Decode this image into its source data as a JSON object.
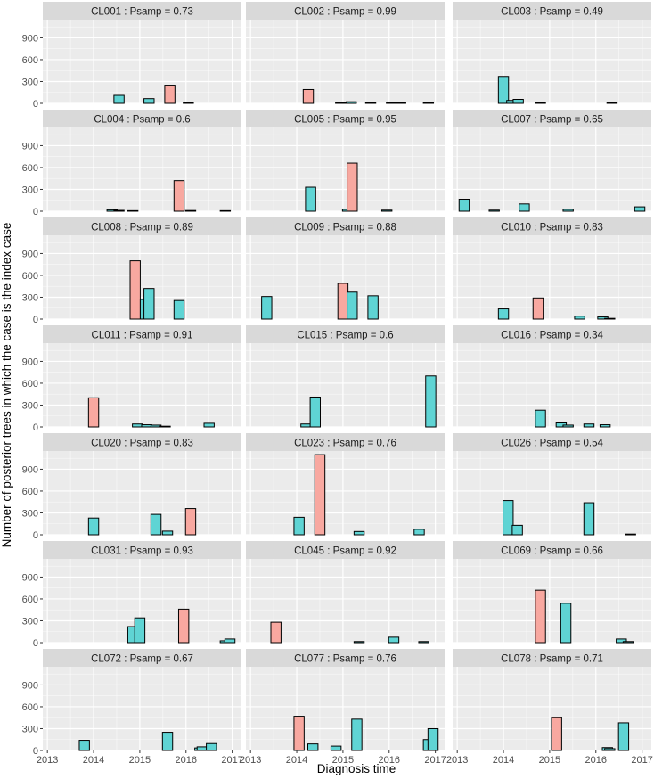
{
  "chart_data": {
    "type": "bar",
    "xlabel": "Diagnosis time",
    "ylabel": "Number of posterior trees in which the case is the index case",
    "xlim": [
      2012.9,
      2017.2
    ],
    "ylim": [
      0,
      1150
    ],
    "x_ticks": [
      "2013",
      "2014",
      "2015",
      "2016",
      "2017"
    ],
    "y_ticks": [
      "0",
      "300",
      "600",
      "900"
    ],
    "colors": {
      "pink": "#F8A8A0",
      "teal": "#5FD4D4",
      "panel": "#EBEBEB",
      "strip": "#D9D9D9",
      "grid": "#FFFFFF",
      "bar_border": "#000000"
    },
    "bar_width_years": 0.22,
    "panels": [
      {
        "label": "CL001 : Psamp = 0.73",
        "bars": [
          {
            "x": 2014.55,
            "y": 110,
            "fill": "teal"
          },
          {
            "x": 2015.2,
            "y": 65,
            "fill": "teal"
          },
          {
            "x": 2015.65,
            "y": 250,
            "fill": "pink"
          },
          {
            "x": 2016.05,
            "y": 10,
            "fill": "teal"
          }
        ]
      },
      {
        "label": "CL002 : Psamp = 0.99",
        "bars": [
          {
            "x": 2014.25,
            "y": 190,
            "fill": "pink"
          },
          {
            "x": 2014.95,
            "y": 8,
            "fill": "teal"
          },
          {
            "x": 2015.18,
            "y": 22,
            "fill": "teal"
          },
          {
            "x": 2015.6,
            "y": 12,
            "fill": "teal"
          },
          {
            "x": 2016.05,
            "y": 8,
            "fill": "teal"
          },
          {
            "x": 2016.25,
            "y": 10,
            "fill": "teal"
          },
          {
            "x": 2016.85,
            "y": 8,
            "fill": "teal"
          }
        ]
      },
      {
        "label": "CL003 : Psamp = 0.49",
        "bars": [
          {
            "x": 2014.0,
            "y": 370,
            "fill": "teal"
          },
          {
            "x": 2014.18,
            "y": 40,
            "fill": "teal"
          },
          {
            "x": 2014.32,
            "y": 55,
            "fill": "teal"
          },
          {
            "x": 2014.8,
            "y": 10,
            "fill": "teal"
          },
          {
            "x": 2016.35,
            "y": 12,
            "fill": "teal"
          }
        ]
      },
      {
        "label": "CL004 : Psamp = 0.6",
        "bars": [
          {
            "x": 2014.4,
            "y": 20,
            "fill": "teal"
          },
          {
            "x": 2014.55,
            "y": 12,
            "fill": "teal"
          },
          {
            "x": 2014.85,
            "y": 8,
            "fill": "teal"
          },
          {
            "x": 2015.85,
            "y": 420,
            "fill": "pink"
          },
          {
            "x": 2016.1,
            "y": 10,
            "fill": "teal"
          },
          {
            "x": 2016.85,
            "y": 8,
            "fill": "teal"
          }
        ]
      },
      {
        "label": "CL005 : Psamp = 0.95",
        "bars": [
          {
            "x": 2014.3,
            "y": 330,
            "fill": "teal"
          },
          {
            "x": 2015.1,
            "y": 25,
            "fill": "teal"
          },
          {
            "x": 2015.2,
            "y": 660,
            "fill": "pink"
          },
          {
            "x": 2015.95,
            "y": 15,
            "fill": "teal"
          }
        ]
      },
      {
        "label": "CL007 : Psamp = 0.65",
        "bars": [
          {
            "x": 2013.15,
            "y": 165,
            "fill": "teal"
          },
          {
            "x": 2013.8,
            "y": 15,
            "fill": "teal"
          },
          {
            "x": 2014.45,
            "y": 100,
            "fill": "teal"
          },
          {
            "x": 2015.4,
            "y": 25,
            "fill": "teal"
          },
          {
            "x": 2016.95,
            "y": 60,
            "fill": "teal"
          }
        ]
      },
      {
        "label": "CL008 : Psamp = 0.89",
        "bars": [
          {
            "x": 2014.9,
            "y": 800,
            "fill": "pink"
          },
          {
            "x": 2015.12,
            "y": 270,
            "fill": "teal"
          },
          {
            "x": 2015.2,
            "y": 420,
            "fill": "teal"
          },
          {
            "x": 2015.85,
            "y": 255,
            "fill": "teal"
          }
        ]
      },
      {
        "label": "CL009 : Psamp = 0.88",
        "bars": [
          {
            "x": 2013.35,
            "y": 310,
            "fill": "teal"
          },
          {
            "x": 2015.0,
            "y": 490,
            "fill": "pink"
          },
          {
            "x": 2015.2,
            "y": 370,
            "fill": "teal"
          },
          {
            "x": 2015.65,
            "y": 320,
            "fill": "teal"
          }
        ]
      },
      {
        "label": "CL010 : Psamp = 0.83",
        "bars": [
          {
            "x": 2014.0,
            "y": 140,
            "fill": "teal"
          },
          {
            "x": 2014.75,
            "y": 290,
            "fill": "pink"
          },
          {
            "x": 2015.65,
            "y": 40,
            "fill": "teal"
          },
          {
            "x": 2016.15,
            "y": 30,
            "fill": "teal"
          },
          {
            "x": 2016.3,
            "y": 10,
            "fill": "teal"
          }
        ]
      },
      {
        "label": "CL011 : Psamp = 0.91",
        "bars": [
          {
            "x": 2014.0,
            "y": 400,
            "fill": "pink"
          },
          {
            "x": 2014.95,
            "y": 40,
            "fill": "teal"
          },
          {
            "x": 2015.15,
            "y": 30,
            "fill": "teal"
          },
          {
            "x": 2015.35,
            "y": 25,
            "fill": "teal"
          },
          {
            "x": 2015.55,
            "y": 10,
            "fill": "teal"
          },
          {
            "x": 2016.5,
            "y": 50,
            "fill": "teal"
          }
        ]
      },
      {
        "label": "CL015 : Psamp = 0.6",
        "bars": [
          {
            "x": 2014.2,
            "y": 40,
            "fill": "teal"
          },
          {
            "x": 2014.4,
            "y": 410,
            "fill": "teal"
          },
          {
            "x": 2016.9,
            "y": 700,
            "fill": "teal"
          }
        ]
      },
      {
        "label": "CL016 : Psamp = 0.34",
        "bars": [
          {
            "x": 2014.8,
            "y": 230,
            "fill": "teal"
          },
          {
            "x": 2015.25,
            "y": 55,
            "fill": "teal"
          },
          {
            "x": 2015.4,
            "y": 25,
            "fill": "teal"
          },
          {
            "x": 2015.85,
            "y": 40,
            "fill": "teal"
          },
          {
            "x": 2016.2,
            "y": 30,
            "fill": "teal"
          }
        ]
      },
      {
        "label": "CL020 : Psamp = 0.83",
        "bars": [
          {
            "x": 2014.0,
            "y": 230,
            "fill": "teal"
          },
          {
            "x": 2015.35,
            "y": 280,
            "fill": "teal"
          },
          {
            "x": 2015.6,
            "y": 50,
            "fill": "teal"
          },
          {
            "x": 2016.1,
            "y": 360,
            "fill": "pink"
          }
        ]
      },
      {
        "label": "CL023 : Psamp = 0.76",
        "bars": [
          {
            "x": 2014.05,
            "y": 240,
            "fill": "teal"
          },
          {
            "x": 2014.5,
            "y": 1100,
            "fill": "pink"
          },
          {
            "x": 2015.35,
            "y": 45,
            "fill": "teal"
          },
          {
            "x": 2016.65,
            "y": 75,
            "fill": "teal"
          }
        ]
      },
      {
        "label": "CL026 : Psamp = 0.54",
        "bars": [
          {
            "x": 2014.1,
            "y": 470,
            "fill": "teal"
          },
          {
            "x": 2014.3,
            "y": 130,
            "fill": "teal"
          },
          {
            "x": 2015.85,
            "y": 440,
            "fill": "teal"
          },
          {
            "x": 2016.75,
            "y": 10,
            "fill": "teal"
          }
        ]
      },
      {
        "label": "CL031 : Psamp = 0.93",
        "bars": [
          {
            "x": 2014.85,
            "y": 220,
            "fill": "teal"
          },
          {
            "x": 2015.0,
            "y": 340,
            "fill": "teal"
          },
          {
            "x": 2015.95,
            "y": 460,
            "fill": "pink"
          },
          {
            "x": 2016.85,
            "y": 25,
            "fill": "teal"
          },
          {
            "x": 2016.95,
            "y": 50,
            "fill": "teal"
          }
        ]
      },
      {
        "label": "CL045 : Psamp = 0.92",
        "bars": [
          {
            "x": 2013.55,
            "y": 280,
            "fill": "pink"
          },
          {
            "x": 2015.35,
            "y": 15,
            "fill": "teal"
          },
          {
            "x": 2016.1,
            "y": 75,
            "fill": "teal"
          },
          {
            "x": 2016.75,
            "y": 15,
            "fill": "teal"
          }
        ]
      },
      {
        "label": "CL069 : Psamp = 0.66",
        "bars": [
          {
            "x": 2014.8,
            "y": 720,
            "fill": "pink"
          },
          {
            "x": 2015.35,
            "y": 540,
            "fill": "teal"
          },
          {
            "x": 2016.55,
            "y": 50,
            "fill": "teal"
          },
          {
            "x": 2016.7,
            "y": 15,
            "fill": "teal"
          }
        ]
      },
      {
        "label": "CL072 : Psamp = 0.67",
        "bars": [
          {
            "x": 2013.8,
            "y": 140,
            "fill": "teal"
          },
          {
            "x": 2015.6,
            "y": 250,
            "fill": "teal"
          },
          {
            "x": 2016.3,
            "y": 35,
            "fill": "teal"
          },
          {
            "x": 2016.35,
            "y": 50,
            "fill": "teal"
          },
          {
            "x": 2016.55,
            "y": 95,
            "fill": "teal"
          }
        ]
      },
      {
        "label": "CL077 : Psamp = 0.76",
        "bars": [
          {
            "x": 2014.05,
            "y": 470,
            "fill": "pink"
          },
          {
            "x": 2014.35,
            "y": 90,
            "fill": "teal"
          },
          {
            "x": 2014.85,
            "y": 60,
            "fill": "teal"
          },
          {
            "x": 2015.3,
            "y": 430,
            "fill": "teal"
          },
          {
            "x": 2016.85,
            "y": 150,
            "fill": "teal"
          },
          {
            "x": 2016.95,
            "y": 300,
            "fill": "teal"
          }
        ]
      },
      {
        "label": "CL078 : Psamp = 0.71",
        "bars": [
          {
            "x": 2015.15,
            "y": 450,
            "fill": "pink"
          },
          {
            "x": 2016.25,
            "y": 40,
            "fill": "teal"
          },
          {
            "x": 2016.3,
            "y": 25,
            "fill": "teal"
          },
          {
            "x": 2016.6,
            "y": 380,
            "fill": "teal"
          }
        ]
      }
    ]
  }
}
